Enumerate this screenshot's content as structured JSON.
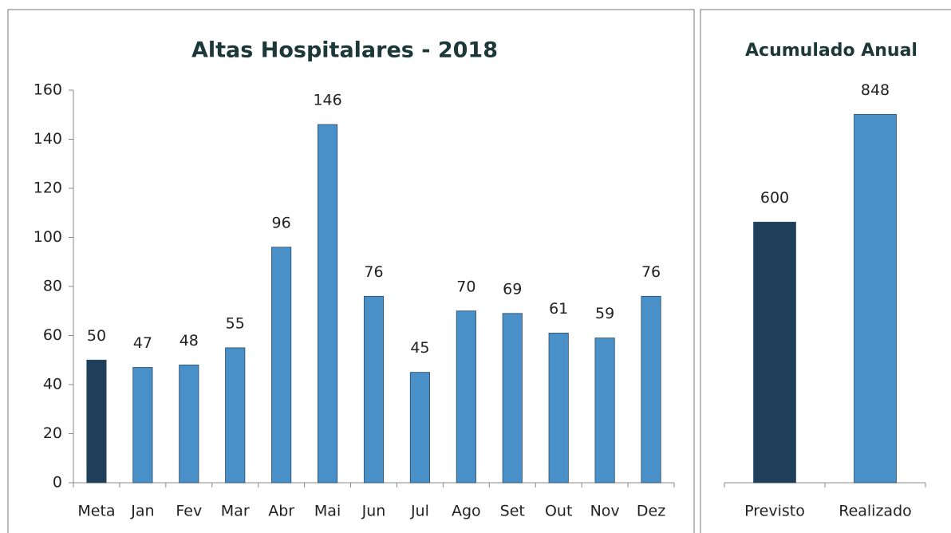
{
  "chart_data": [
    {
      "type": "bar",
      "title": "Altas Hospitalares  - 2018",
      "categories": [
        "Meta",
        "Jan",
        "Fev",
        "Mar",
        "Abr",
        "Mai",
        "Jun",
        "Jul",
        "Ago",
        "Set",
        "Out",
        "Nov",
        "Dez"
      ],
      "values": [
        50,
        47,
        48,
        55,
        96,
        146,
        76,
        45,
        70,
        69,
        61,
        59,
        76
      ],
      "colors": [
        "#1f3f5a",
        "#4a90c8",
        "#4a90c8",
        "#4a90c8",
        "#4a90c8",
        "#4a90c8",
        "#4a90c8",
        "#4a90c8",
        "#4a90c8",
        "#4a90c8",
        "#4a90c8",
        "#4a90c8",
        "#4a90c8"
      ],
      "ylim": [
        0,
        160
      ],
      "yticks": [
        0,
        20,
        40,
        60,
        80,
        100,
        120,
        140,
        160
      ]
    },
    {
      "type": "bar",
      "title": "Acumulado Anual",
      "categories": [
        "Previsto",
        "Realizado"
      ],
      "values": [
        600,
        848
      ],
      "colors": [
        "#1f3f5a",
        "#4a90c8"
      ],
      "ylim": [
        0,
        900
      ]
    }
  ]
}
